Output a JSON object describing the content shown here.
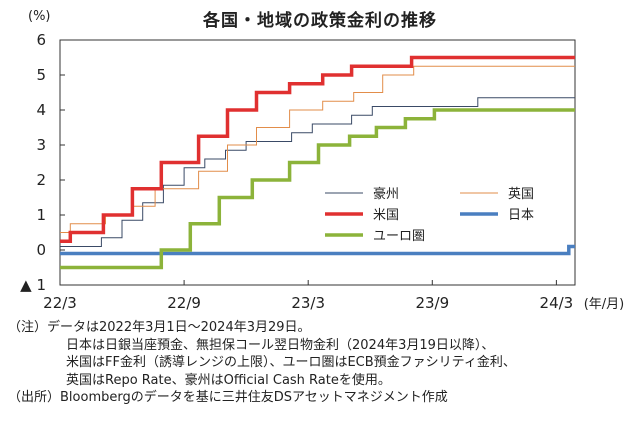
{
  "chart_data": {
    "type": "line",
    "title": "各国・地域の政策金利の推移",
    "yunit": "(%)",
    "xunit": "(年/月)",
    "ylim": [
      -1,
      6
    ],
    "yticks": [
      {
        "value": 6,
        "label": "6"
      },
      {
        "value": 5,
        "label": "5"
      },
      {
        "value": 4,
        "label": "4"
      },
      {
        "value": 3,
        "label": "3"
      },
      {
        "value": 2,
        "label": "2"
      },
      {
        "value": 1,
        "label": "1"
      },
      {
        "value": 0,
        "label": "0"
      },
      {
        "value": -1,
        "label": "▲ 1"
      }
    ],
    "xlim": [
      0,
      24.9
    ],
    "xticks": [
      {
        "value": 0,
        "label": "22/3"
      },
      {
        "value": 6,
        "label": "22/9"
      },
      {
        "value": 12,
        "label": "23/3"
      },
      {
        "value": 18,
        "label": "23/9"
      },
      {
        "value": 24,
        "label": "24/3"
      }
    ],
    "grid": false,
    "series": [
      {
        "name": "豪州",
        "color": "#3a4a66",
        "width": 1,
        "points": [
          [
            0,
            0.1
          ],
          [
            2.0,
            0.1
          ],
          [
            2.0,
            0.35
          ],
          [
            3.0,
            0.35
          ],
          [
            3.0,
            0.85
          ],
          [
            4.0,
            0.85
          ],
          [
            4.0,
            1.35
          ],
          [
            5.0,
            1.35
          ],
          [
            5.0,
            1.85
          ],
          [
            6.0,
            1.85
          ],
          [
            6.0,
            2.35
          ],
          [
            7.0,
            2.35
          ],
          [
            7.0,
            2.6
          ],
          [
            8.0,
            2.6
          ],
          [
            8.0,
            2.85
          ],
          [
            9.0,
            2.85
          ],
          [
            9.0,
            3.1
          ],
          [
            11.2,
            3.1
          ],
          [
            11.2,
            3.35
          ],
          [
            12.2,
            3.35
          ],
          [
            12.2,
            3.6
          ],
          [
            14.1,
            3.6
          ],
          [
            14.1,
            3.85
          ],
          [
            15.1,
            3.85
          ],
          [
            15.1,
            4.1
          ],
          [
            20.2,
            4.1
          ],
          [
            20.2,
            4.35
          ],
          [
            24.9,
            4.35
          ]
        ]
      },
      {
        "name": "英国",
        "color": "#e28d4a",
        "width": 1,
        "points": [
          [
            0,
            0.5
          ],
          [
            0.5,
            0.5
          ],
          [
            0.5,
            0.75
          ],
          [
            2.2,
            0.75
          ],
          [
            2.2,
            1.0
          ],
          [
            3.5,
            1.0
          ],
          [
            3.5,
            1.25
          ],
          [
            4.6,
            1.25
          ],
          [
            4.6,
            1.75
          ],
          [
            6.7,
            1.75
          ],
          [
            6.7,
            2.25
          ],
          [
            8.1,
            2.25
          ],
          [
            8.1,
            3.0
          ],
          [
            9.5,
            3.0
          ],
          [
            9.5,
            3.5
          ],
          [
            11.1,
            3.5
          ],
          [
            11.1,
            4.0
          ],
          [
            12.7,
            4.0
          ],
          [
            12.7,
            4.25
          ],
          [
            14.2,
            4.25
          ],
          [
            14.2,
            4.5
          ],
          [
            15.6,
            4.5
          ],
          [
            15.6,
            5.0
          ],
          [
            17.1,
            5.0
          ],
          [
            17.1,
            5.25
          ],
          [
            24.9,
            5.25
          ]
        ]
      },
      {
        "name": "米国",
        "color": "#e03030",
        "width": 3.5,
        "points": [
          [
            0,
            0.25
          ],
          [
            0.5,
            0.25
          ],
          [
            0.5,
            0.5
          ],
          [
            2.1,
            0.5
          ],
          [
            2.1,
            1.0
          ],
          [
            3.5,
            1.0
          ],
          [
            3.5,
            1.75
          ],
          [
            4.9,
            1.75
          ],
          [
            4.9,
            2.5
          ],
          [
            6.7,
            2.5
          ],
          [
            6.7,
            3.25
          ],
          [
            8.1,
            3.25
          ],
          [
            8.1,
            4.0
          ],
          [
            9.5,
            4.0
          ],
          [
            9.5,
            4.5
          ],
          [
            11.1,
            4.5
          ],
          [
            11.1,
            4.75
          ],
          [
            12.7,
            4.75
          ],
          [
            12.7,
            5.0
          ],
          [
            14.1,
            5.0
          ],
          [
            14.1,
            5.25
          ],
          [
            17.0,
            5.25
          ],
          [
            17.0,
            5.5
          ],
          [
            24.9,
            5.5
          ]
        ]
      },
      {
        "name": "日本",
        "color": "#4a7fc0",
        "width": 3.5,
        "points": [
          [
            0,
            -0.1
          ],
          [
            24.6,
            -0.1
          ],
          [
            24.6,
            0.1
          ],
          [
            24.9,
            0.1
          ]
        ]
      },
      {
        "name": "ユーロ圏",
        "color": "#8cb33a",
        "width": 3.5,
        "points": [
          [
            0,
            -0.5
          ],
          [
            4.9,
            -0.5
          ],
          [
            4.9,
            0.0
          ],
          [
            6.3,
            0.0
          ],
          [
            6.3,
            0.75
          ],
          [
            7.7,
            0.75
          ],
          [
            7.7,
            1.5
          ],
          [
            9.3,
            1.5
          ],
          [
            9.3,
            2.0
          ],
          [
            11.1,
            2.0
          ],
          [
            11.1,
            2.5
          ],
          [
            12.5,
            2.5
          ],
          [
            12.5,
            3.0
          ],
          [
            14.0,
            3.0
          ],
          [
            14.0,
            3.25
          ],
          [
            15.3,
            3.25
          ],
          [
            15.3,
            3.5
          ],
          [
            16.7,
            3.5
          ],
          [
            16.7,
            3.75
          ],
          [
            18.1,
            3.75
          ],
          [
            18.1,
            4.0
          ],
          [
            24.9,
            4.0
          ]
        ]
      }
    ]
  },
  "notes": {
    "line1": "（注）データは2022年3月1日～2024年3月29日。",
    "line2": "日本は日銀当座預金、無担保コール翌日物金利（2024年3月19日以降）、",
    "line3": "米国はFF金利（誘導レンジの上限）、ユーロ圏はECB預金ファシリティ金利、",
    "line4": "英国はRepo Rate、豪州はOfficial Cash Rateを使用。",
    "line5": "（出所）Bloombergのデータを基に三井住友DSアセットマネジメント作成"
  }
}
